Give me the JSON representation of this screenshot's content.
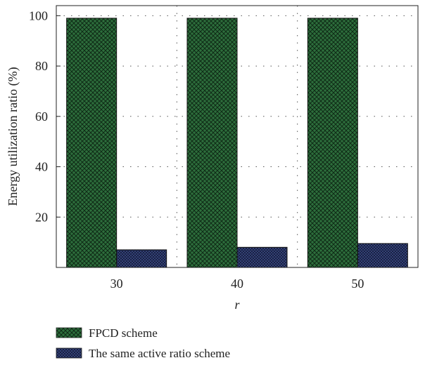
{
  "chart_data": {
    "type": "bar",
    "categories": [
      "30",
      "40",
      "50"
    ],
    "series": [
      {
        "name": "FPCD scheme",
        "values": [
          99,
          99,
          99
        ],
        "color": "#2d6e3c",
        "pattern": "crosshatch"
      },
      {
        "name": "The same active ratio scheme",
        "values": [
          7,
          8,
          9.5
        ],
        "color": "#2a3566",
        "pattern": "dots"
      }
    ],
    "xlabel": "r",
    "ylabel": "Energy utilization ratio (%)",
    "ylim": [
      0,
      104
    ],
    "yticks": [
      20,
      40,
      60,
      80,
      100
    ],
    "grid": true,
    "legend_position": "bottom-left"
  }
}
